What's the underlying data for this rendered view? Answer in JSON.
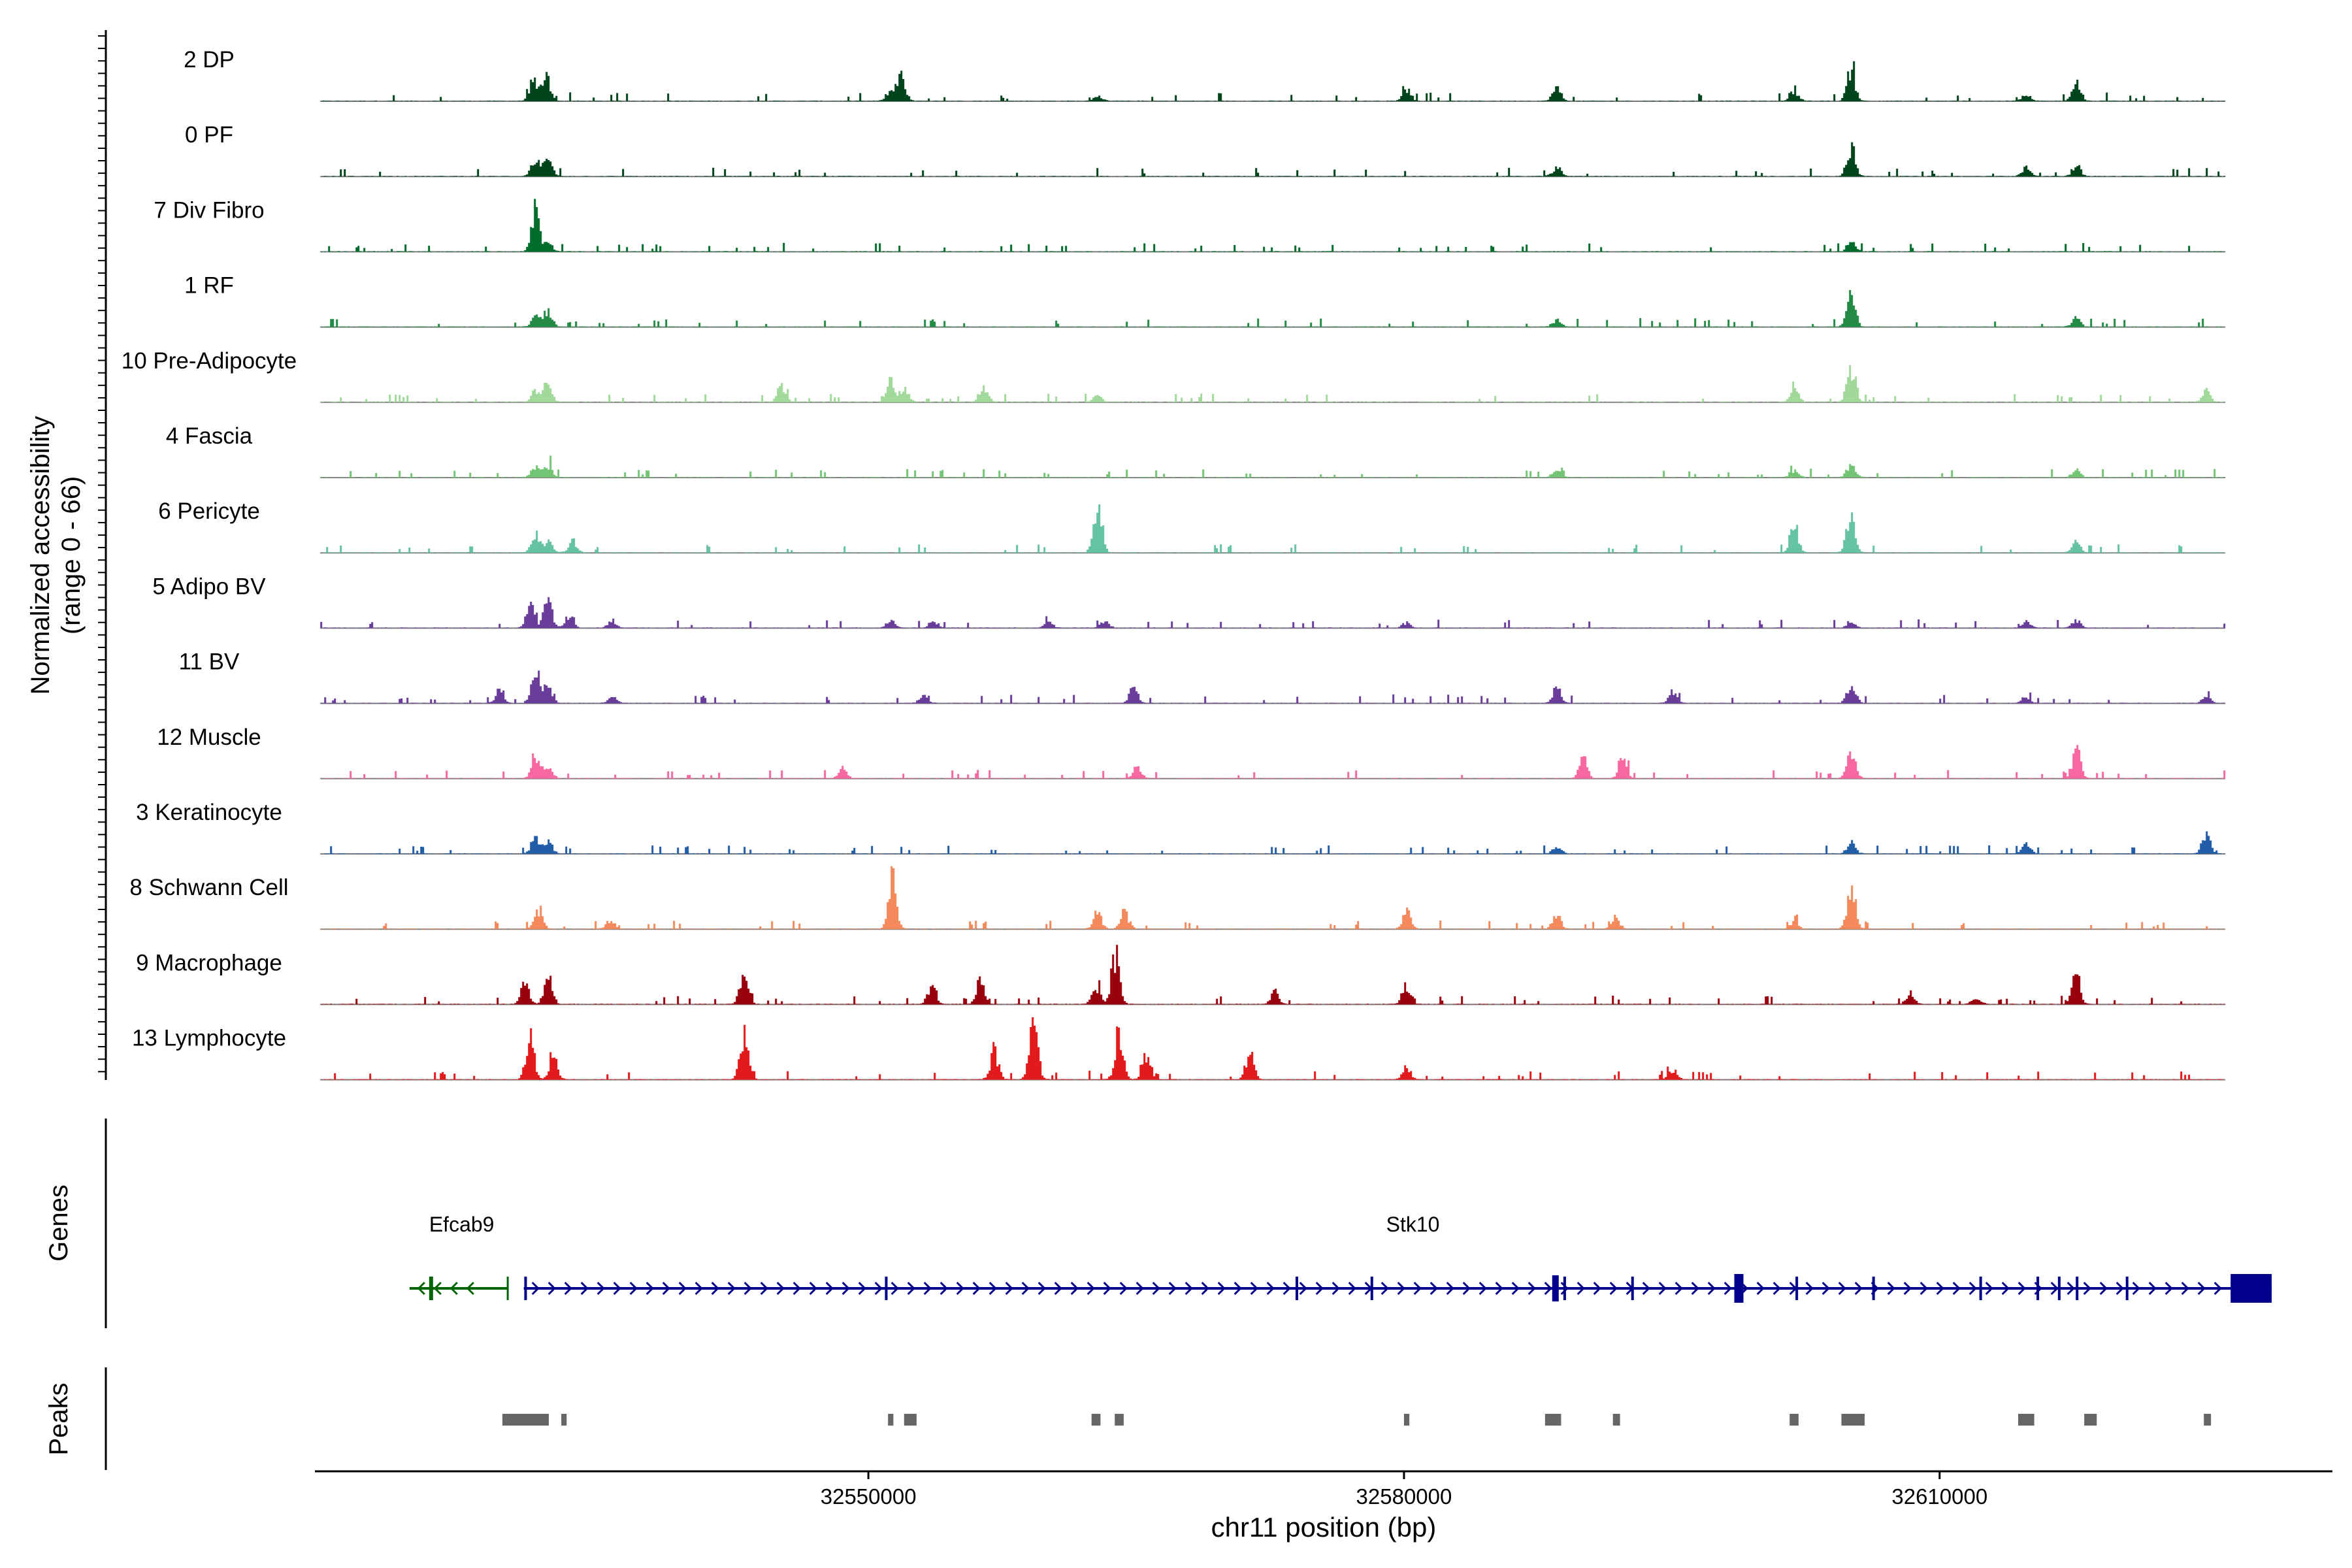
{
  "chart_data": {
    "type": "coverage",
    "y_axis_title_line1": "Normalized accessibility",
    "y_axis_title_line2": "(range 0 - 66)",
    "y_range": [
      0,
      66
    ],
    "x_axis_title": "chr11 position (bp)",
    "x_range": [
      32519000,
      32632000
    ],
    "x_ticks": [
      {
        "value": 32550000,
        "label": "32550000"
      },
      {
        "value": 32580000,
        "label": "32580000"
      },
      {
        "value": 32610000,
        "label": "32610000"
      }
    ],
    "tracks": [
      {
        "label": "2 DP",
        "color": "#00441b",
        "peaks": [
          [
            32531200,
            0.55
          ],
          [
            32531900,
            0.7
          ],
          [
            32551200,
            0.3
          ],
          [
            32551800,
            0.65
          ],
          [
            32562800,
            0.15
          ],
          [
            32580100,
            0.3
          ],
          [
            32588500,
            0.35
          ],
          [
            32601800,
            0.3
          ],
          [
            32605000,
            0.85
          ],
          [
            32614800,
            0.2
          ],
          [
            32617600,
            0.6
          ]
        ]
      },
      {
        "label": "0 PF",
        "color": "#00441b",
        "peaks": [
          [
            32531300,
            0.45
          ],
          [
            32532000,
            0.4
          ],
          [
            32588500,
            0.25
          ],
          [
            32605000,
            0.8
          ],
          [
            32614800,
            0.25
          ],
          [
            32617600,
            0.3
          ]
        ]
      },
      {
        "label": "7 Div Fibro",
        "color": "#006d2c",
        "peaks": [
          [
            32531300,
            1.0
          ],
          [
            32532000,
            0.25
          ],
          [
            32605000,
            0.25
          ]
        ]
      },
      {
        "label": "1 RF",
        "color": "#238b45",
        "peaks": [
          [
            32531300,
            0.35
          ],
          [
            32532000,
            0.45
          ],
          [
            32588500,
            0.2
          ],
          [
            32605000,
            0.85
          ],
          [
            32617600,
            0.2
          ]
        ]
      },
      {
        "label": "10 Pre-Adipocyte",
        "color": "#a1d99b",
        "peaks": [
          [
            32531300,
            0.3
          ],
          [
            32532000,
            0.55
          ],
          [
            32545100,
            0.45
          ],
          [
            32551200,
            0.55
          ],
          [
            32552000,
            0.35
          ],
          [
            32556400,
            0.45
          ],
          [
            32562800,
            0.2
          ],
          [
            32601800,
            0.45
          ],
          [
            32605000,
            1.0
          ],
          [
            32624900,
            0.3
          ]
        ]
      },
      {
        "label": "4 Fascia",
        "color": "#74c476",
        "peaks": [
          [
            32531300,
            0.3
          ],
          [
            32532000,
            0.35
          ],
          [
            32588500,
            0.2
          ],
          [
            32601800,
            0.2
          ],
          [
            32605000,
            0.4
          ],
          [
            32617600,
            0.2
          ]
        ]
      },
      {
        "label": "6 Pericyte",
        "color": "#66c2a4",
        "peaks": [
          [
            32531300,
            0.45
          ],
          [
            32532000,
            0.3
          ],
          [
            32533400,
            0.3
          ],
          [
            32562800,
            1.4
          ],
          [
            32601800,
            0.8
          ],
          [
            32605000,
            1.1
          ],
          [
            32617600,
            0.35
          ]
        ]
      },
      {
        "label": "5 Adipo BV",
        "color": "#6a3d9a",
        "peaks": [
          [
            32531000,
            0.6
          ],
          [
            32532000,
            0.7
          ],
          [
            32533200,
            0.35
          ],
          [
            32535600,
            0.2
          ],
          [
            32551200,
            0.2
          ],
          [
            32553600,
            0.2
          ],
          [
            32560000,
            0.2
          ],
          [
            32563200,
            0.2
          ],
          [
            32580100,
            0.15
          ],
          [
            32605000,
            0.2
          ],
          [
            32614800,
            0.2
          ],
          [
            32617600,
            0.2
          ]
        ]
      },
      {
        "label": "11 BV",
        "color": "#6a3d9a",
        "peaks": [
          [
            32531300,
            1.0
          ],
          [
            32532000,
            0.5
          ],
          [
            32529300,
            0.4
          ],
          [
            32535600,
            0.2
          ],
          [
            32553000,
            0.2
          ],
          [
            32564800,
            0.4
          ],
          [
            32588500,
            0.4
          ],
          [
            32595000,
            0.3
          ],
          [
            32605000,
            0.6
          ],
          [
            32614800,
            0.2
          ],
          [
            32624900,
            0.2
          ]
        ]
      },
      {
        "label": "12 Muscle",
        "color": "#f768a1",
        "peaks": [
          [
            32531300,
            0.5
          ],
          [
            32532000,
            0.4
          ],
          [
            32548500,
            0.25
          ],
          [
            32565000,
            0.3
          ],
          [
            32590000,
            0.5
          ],
          [
            32592200,
            0.6
          ],
          [
            32605000,
            0.85
          ],
          [
            32617600,
            0.8
          ]
        ]
      },
      {
        "label": "3 Keratinocyte",
        "color": "#225ea8",
        "peaks": [
          [
            32531300,
            0.45
          ],
          [
            32532000,
            0.4
          ],
          [
            32588500,
            0.2
          ],
          [
            32605000,
            0.3
          ],
          [
            32614800,
            0.3
          ],
          [
            32624900,
            0.5
          ]
        ]
      },
      {
        "label": "8 Schwann Cell",
        "color": "#f4895b",
        "peaks": [
          [
            32531500,
            0.55
          ],
          [
            32535500,
            0.25
          ],
          [
            32551300,
            1.4
          ],
          [
            32562800,
            0.4
          ],
          [
            32564300,
            0.45
          ],
          [
            32580100,
            0.45
          ],
          [
            32588500,
            0.35
          ],
          [
            32591800,
            0.3
          ],
          [
            32601800,
            0.2
          ],
          [
            32605000,
            1.25
          ]
        ]
      },
      {
        "label": "9 Macrophage",
        "color": "#99000d",
        "peaks": [
          [
            32530700,
            0.6
          ],
          [
            32532000,
            0.75
          ],
          [
            32543000,
            0.9
          ],
          [
            32553500,
            0.5
          ],
          [
            32556200,
            0.6
          ],
          [
            32562700,
            0.5
          ],
          [
            32563800,
            1.4
          ],
          [
            32572700,
            0.3
          ],
          [
            32580100,
            0.55
          ],
          [
            32608300,
            0.3
          ],
          [
            32612000,
            0.2
          ],
          [
            32617600,
            0.75
          ]
        ]
      },
      {
        "label": "13 Lymphocyte",
        "color": "#e31a1c",
        "peaks": [
          [
            32531000,
            1.1
          ],
          [
            32532300,
            0.7
          ],
          [
            32543000,
            1.2
          ],
          [
            32557000,
            0.7
          ],
          [
            32559200,
            1.6
          ],
          [
            32564000,
            1.3
          ],
          [
            32565500,
            0.6
          ],
          [
            32571300,
            0.7
          ],
          [
            32580100,
            0.3
          ],
          [
            32595000,
            0.25
          ]
        ]
      }
    ],
    "genes_axis_title": "Genes",
    "genes": [
      {
        "name": "Efcab9",
        "color": "#006400",
        "strand": "-",
        "start": 32524300,
        "end": 32529800
      },
      {
        "name": "Stk10",
        "color": "#00008b",
        "strand": "+",
        "start": 32530700,
        "end": 32628600
      }
    ],
    "peaks_axis_title": "Peaks",
    "peak_regions": [
      [
        32529500,
        32532100
      ],
      [
        32532800,
        32533100
      ],
      [
        32551100,
        32551400
      ],
      [
        32552000,
        32552700
      ],
      [
        32562500,
        32563000
      ],
      [
        32563800,
        32564300
      ],
      [
        32580000,
        32580300
      ],
      [
        32587900,
        32588800
      ],
      [
        32591700,
        32592100
      ],
      [
        32601600,
        32602100
      ],
      [
        32604500,
        32605800
      ],
      [
        32614400,
        32615300
      ],
      [
        32618100,
        32618800
      ],
      [
        32624800,
        32625200
      ]
    ],
    "legend": "none"
  }
}
